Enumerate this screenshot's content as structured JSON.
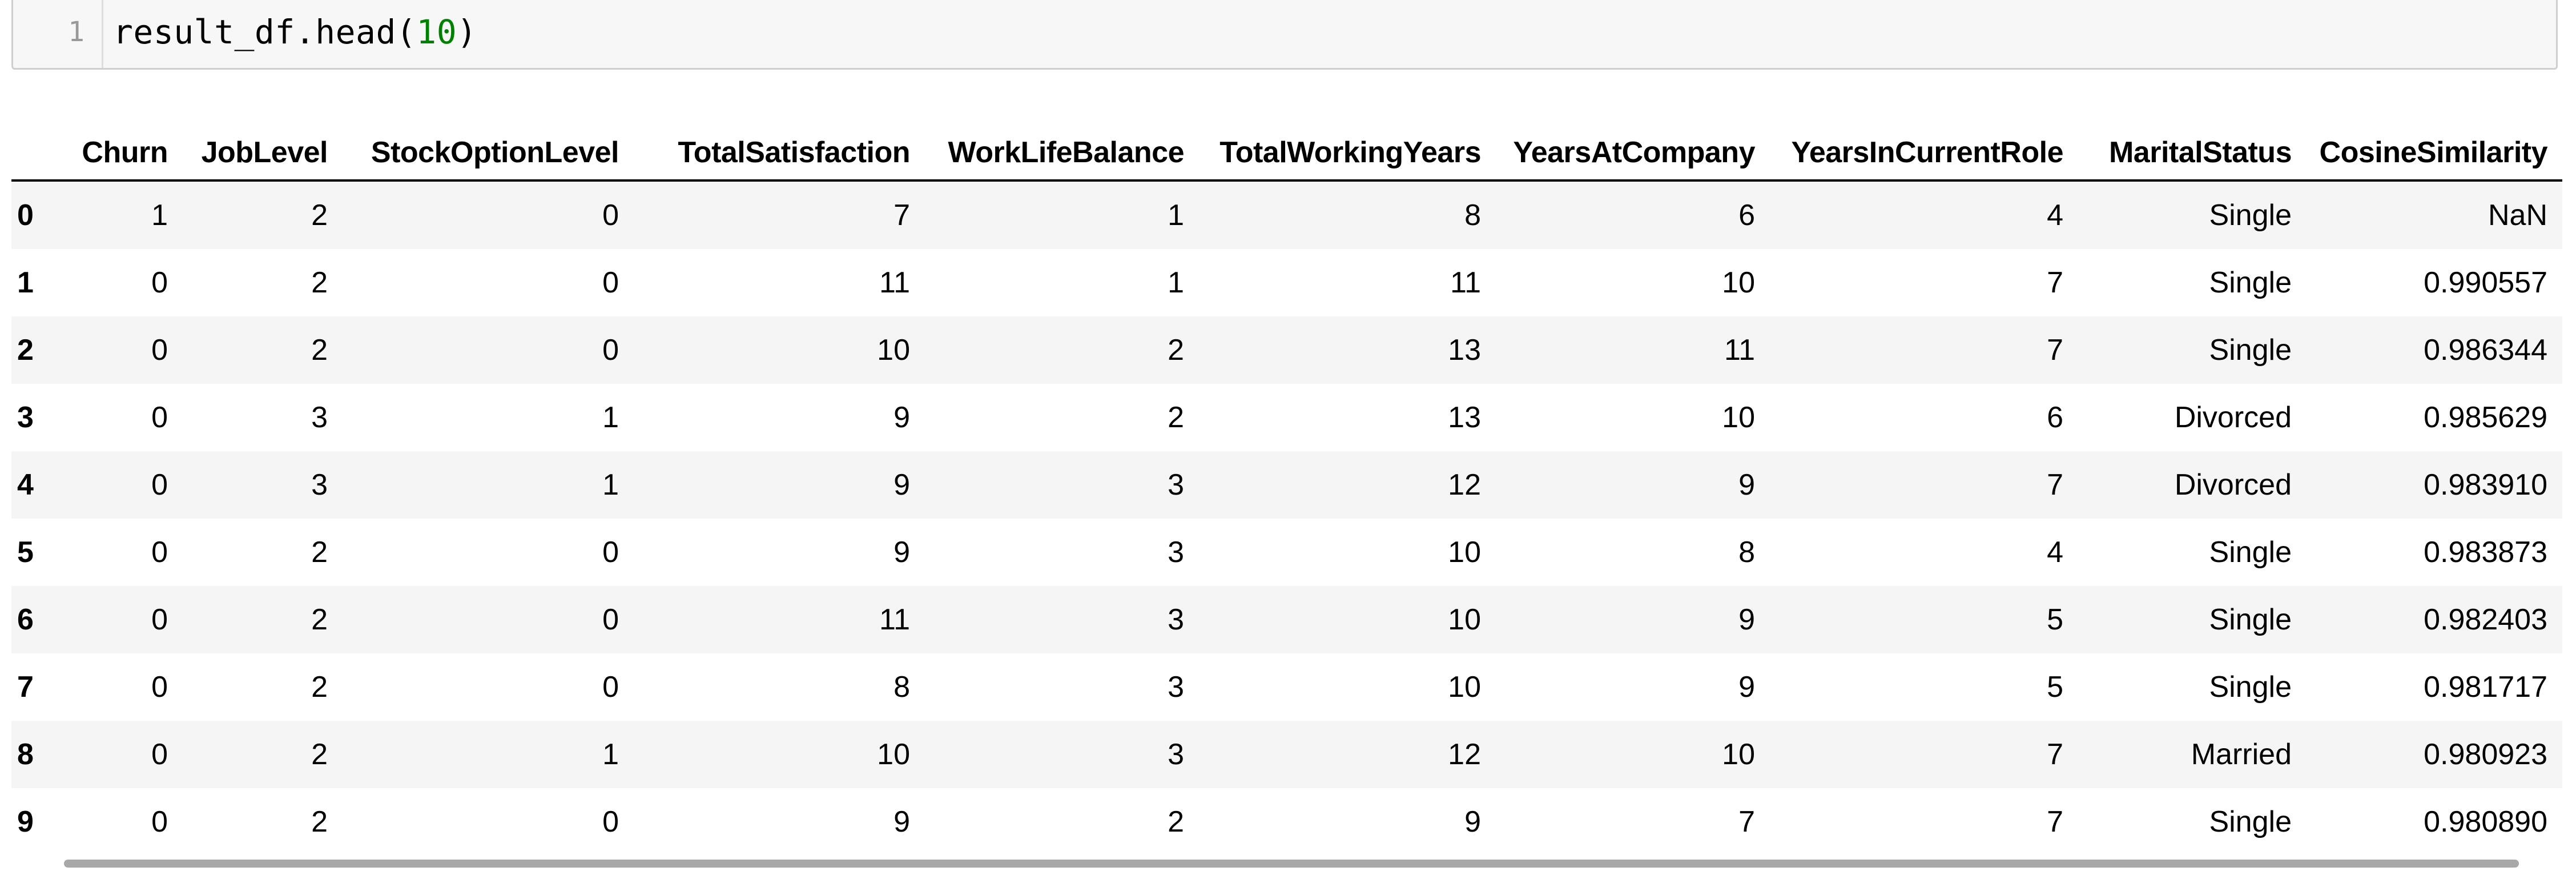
{
  "code_cell": {
    "line_number": "1",
    "code_prefix": "result_df.head(",
    "code_arg": "10",
    "code_suffix": ")"
  },
  "dataframe": {
    "columns": [
      "",
      "Churn",
      "JobLevel",
      "StockOptionLevel",
      "TotalSatisfaction",
      "WorkLifeBalance",
      "TotalWorkingYears",
      "YearsAtCompany",
      "YearsInCurrentRole",
      "MaritalStatus",
      "CosineSimilarity"
    ],
    "rows": [
      [
        "0",
        "1",
        "2",
        "0",
        "7",
        "1",
        "8",
        "6",
        "4",
        "Single",
        "NaN"
      ],
      [
        "1",
        "0",
        "2",
        "0",
        "11",
        "1",
        "11",
        "10",
        "7",
        "Single",
        "0.990557"
      ],
      [
        "2",
        "0",
        "2",
        "0",
        "10",
        "2",
        "13",
        "11",
        "7",
        "Single",
        "0.986344"
      ],
      [
        "3",
        "0",
        "3",
        "1",
        "9",
        "2",
        "13",
        "10",
        "6",
        "Divorced",
        "0.985629"
      ],
      [
        "4",
        "0",
        "3",
        "1",
        "9",
        "3",
        "12",
        "9",
        "7",
        "Divorced",
        "0.983910"
      ],
      [
        "5",
        "0",
        "2",
        "0",
        "9",
        "3",
        "10",
        "8",
        "4",
        "Single",
        "0.983873"
      ],
      [
        "6",
        "0",
        "2",
        "0",
        "11",
        "3",
        "10",
        "9",
        "5",
        "Single",
        "0.982403"
      ],
      [
        "7",
        "0",
        "2",
        "0",
        "8",
        "3",
        "10",
        "9",
        "5",
        "Single",
        "0.981717"
      ],
      [
        "8",
        "0",
        "2",
        "1",
        "10",
        "3",
        "12",
        "10",
        "7",
        "Married",
        "0.980923"
      ],
      [
        "9",
        "0",
        "2",
        "0",
        "9",
        "2",
        "9",
        "7",
        "7",
        "Single",
        "0.980890"
      ]
    ]
  }
}
